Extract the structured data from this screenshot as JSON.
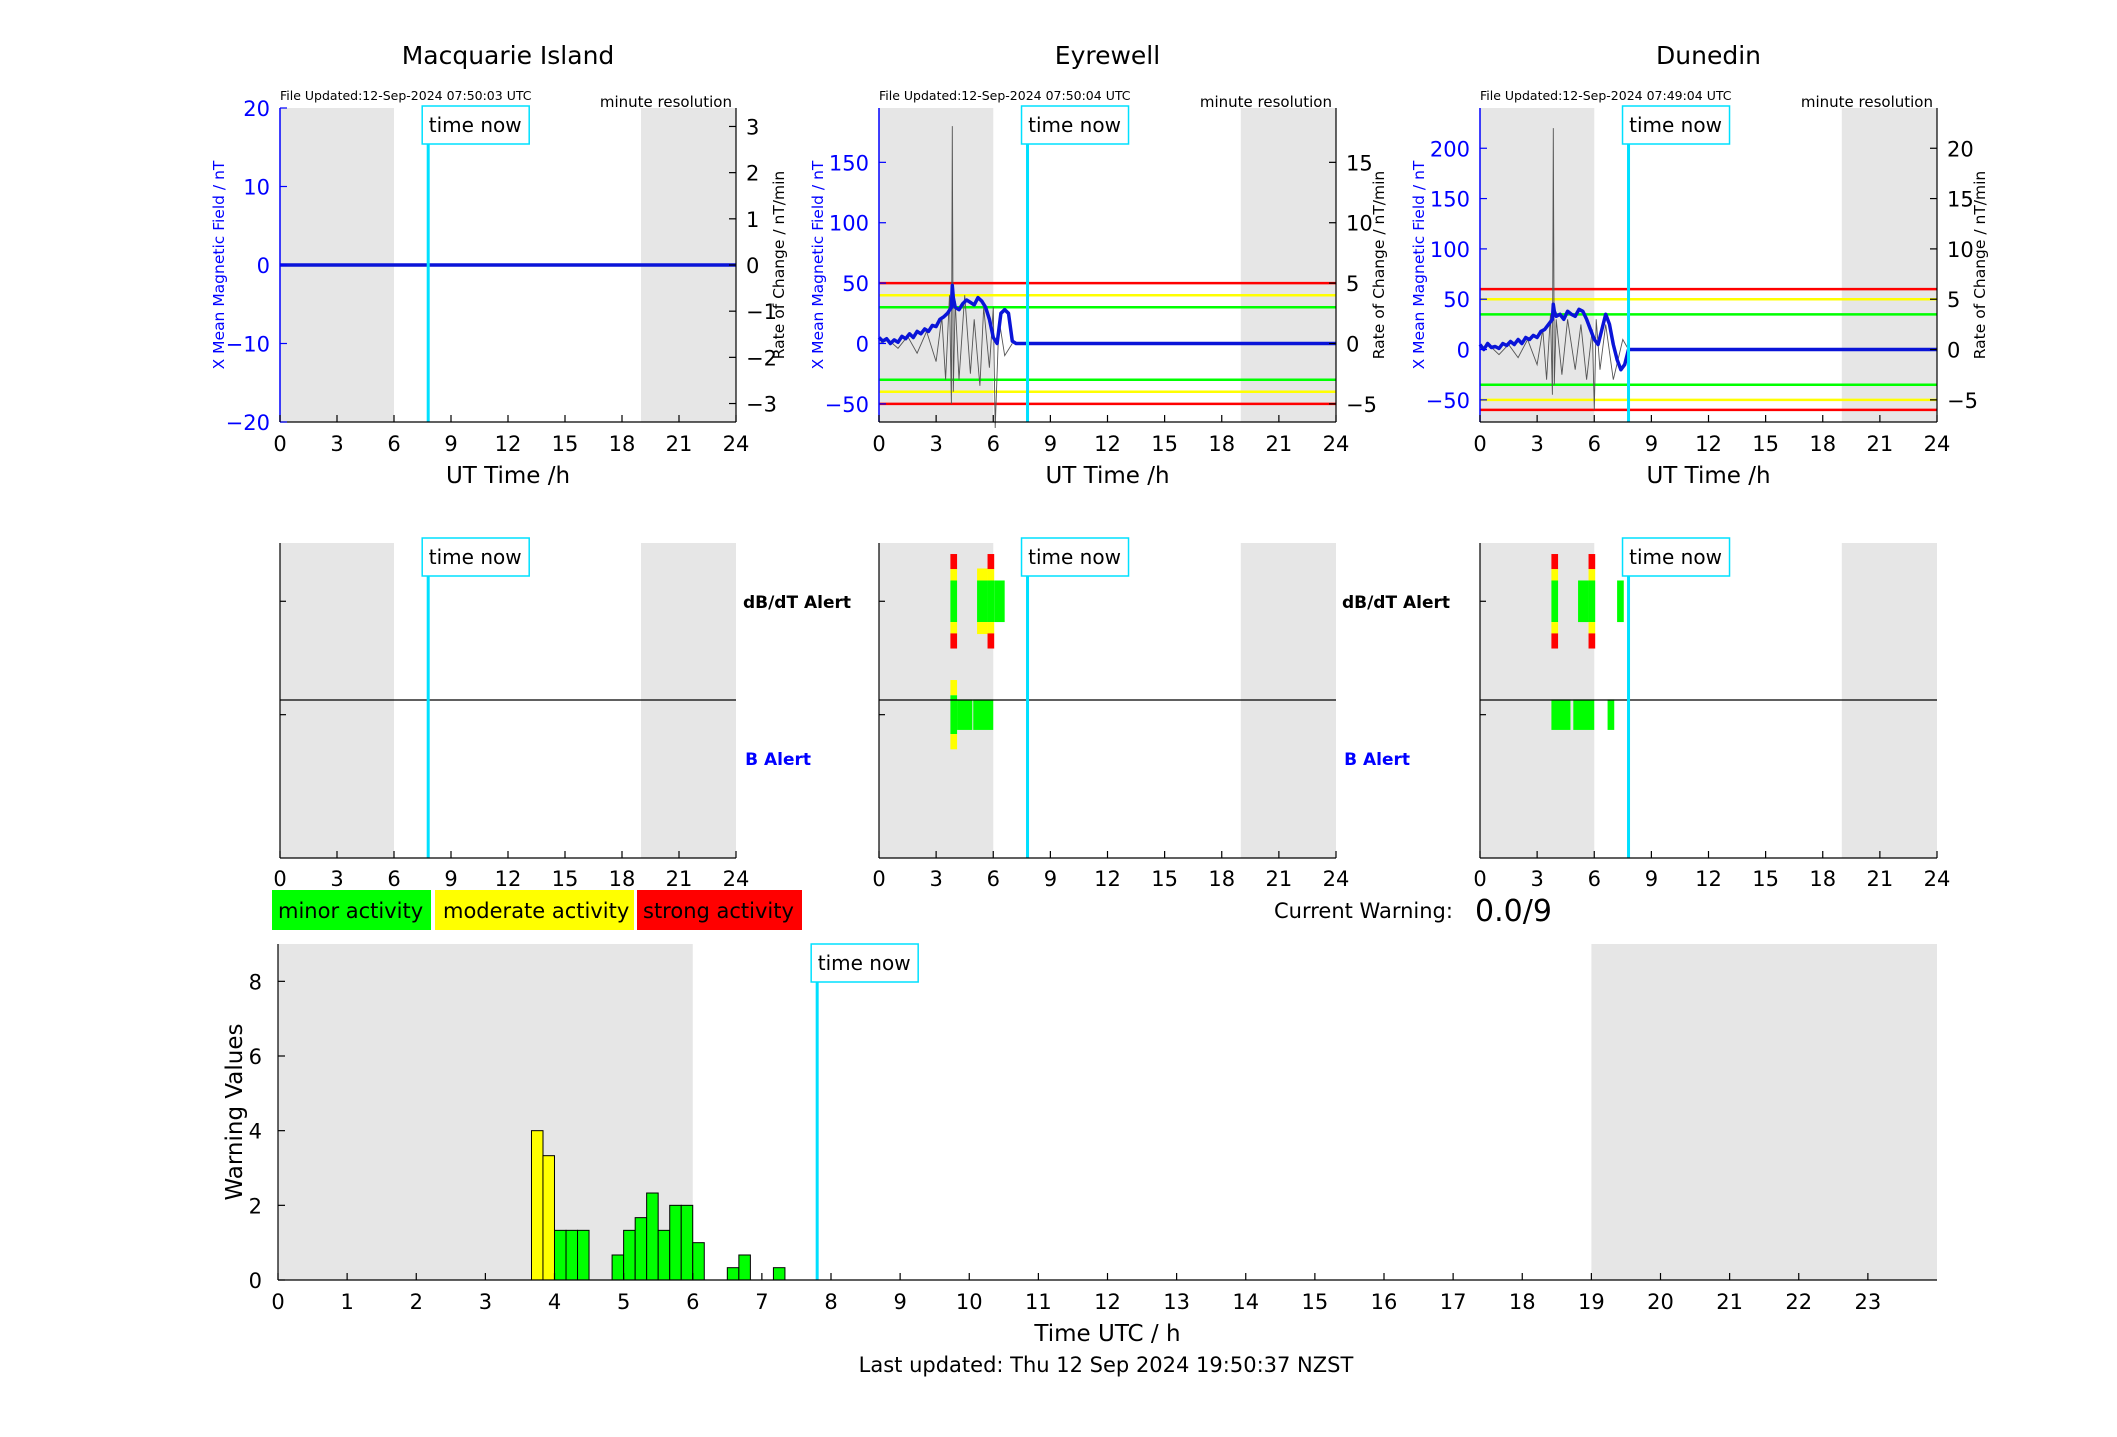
{
  "colors": {
    "blue": "#0000ff",
    "cyan": "#00e0ff",
    "green": "#00ff00",
    "yellow": "#ffff00",
    "red": "#ff0000",
    "night": "#e6e6e6",
    "trace": "#0a14d8",
    "rate": "#555555"
  },
  "top": {
    "xlabel": "UT Time /h",
    "left_ylabel": "X Mean Magnetic Field / nT",
    "right_ylabel": "Rate of Change / nT/min",
    "resolution": "minute resolution",
    "time_now_label": "time now"
  },
  "alerts": {
    "dbdt_label": "dB/dT Alert",
    "b_label": "B Alert"
  },
  "legend": [
    "minor activity",
    "moderate activity",
    "strong activity"
  ],
  "current_warning": {
    "label": "Current Warning:",
    "value": "0.0/9"
  },
  "footer": "Last updated: Thu 12 Sep 2024 19:50:37 NZST",
  "chart_data": [
    {
      "type": "line",
      "title": "Macquarie Island",
      "file_updated": "File Updated:12-Sep-2024 07:50:03 UTC",
      "xlim": [
        0,
        24
      ],
      "xticks": [
        0,
        3,
        6,
        9,
        12,
        15,
        18,
        21,
        24
      ],
      "ylim": [
        -20,
        20
      ],
      "yticks": [
        -20,
        -10,
        0,
        10,
        20
      ],
      "y2lim": [
        -3.4,
        3.4
      ],
      "y2ticks": [
        -3,
        -2,
        -1,
        0,
        1,
        2,
        3
      ],
      "night_spans": [
        [
          0,
          6
        ],
        [
          19,
          24
        ]
      ],
      "time_now": 7.8,
      "thresholds": [],
      "series": [
        {
          "x": [
            0,
            24
          ],
          "y": [
            0,
            0
          ]
        }
      ],
      "rate_series": [],
      "dbdt_alerts": [],
      "b_alerts": []
    },
    {
      "type": "line",
      "title": "Eyrewell",
      "file_updated": "File Updated:12-Sep-2024 07:50:04 UTC",
      "xlim": [
        0,
        24
      ],
      "xticks": [
        0,
        3,
        6,
        9,
        12,
        15,
        18,
        21,
        24
      ],
      "ylim": [
        -65,
        195
      ],
      "yticks": [
        -50,
        0,
        50,
        100,
        150
      ],
      "y2lim": [
        -6.5,
        19.5
      ],
      "y2ticks": [
        -5,
        0,
        5,
        10,
        15
      ],
      "night_spans": [
        [
          0,
          6
        ],
        [
          19,
          24
        ]
      ],
      "time_now": 7.8,
      "thresholds": [
        {
          "value": 50,
          "color": "red"
        },
        {
          "value": 40,
          "color": "yellow"
        },
        {
          "value": 30,
          "color": "green"
        },
        {
          "value": -30,
          "color": "green"
        },
        {
          "value": -40,
          "color": "yellow"
        },
        {
          "value": -50,
          "color": "red"
        }
      ],
      "series": [
        {
          "x": [
            0,
            0.2,
            0.4,
            0.6,
            0.8,
            1.0,
            1.2,
            1.4,
            1.6,
            1.8,
            2.0,
            2.2,
            2.4,
            2.6,
            2.8,
            3.0,
            3.2,
            3.4,
            3.6,
            3.8,
            3.85,
            3.9,
            4.0,
            4.2,
            4.4,
            4.6,
            4.8,
            5.0,
            5.2,
            5.4,
            5.6,
            5.8,
            6.0,
            6.2,
            6.4,
            6.6,
            6.8,
            7.0,
            7.2,
            24
          ],
          "y": [
            5,
            2,
            4,
            0,
            3,
            1,
            6,
            4,
            8,
            5,
            10,
            8,
            12,
            10,
            15,
            14,
            20,
            22,
            25,
            30,
            48,
            38,
            30,
            28,
            33,
            36,
            34,
            32,
            38,
            35,
            30,
            20,
            5,
            0,
            25,
            28,
            25,
            2,
            0,
            0
          ]
        }
      ],
      "rate_series": [
        {
          "x": [
            0,
            0.5,
            1.0,
            1.5,
            2.0,
            2.5,
            3.0,
            3.3,
            3.5,
            3.7,
            3.8,
            3.85,
            3.9,
            4.0,
            4.2,
            4.5,
            4.8,
            5.0,
            5.3,
            5.5,
            5.8,
            6.0,
            6.1,
            6.3,
            6.6,
            7.0
          ],
          "y": [
            0,
            0.3,
            -0.4,
            0.6,
            -0.8,
            1.0,
            -1.5,
            2.2,
            -3.0,
            4.0,
            -5.0,
            18,
            -4,
            3.5,
            -3,
            4,
            -2.5,
            2,
            -3.5,
            3,
            -2,
            3,
            -7,
            2,
            -1,
            0
          ]
        }
      ],
      "dbdt_alerts": [
        {
          "x": 3.75,
          "w": 0.35,
          "levels": [
            "red",
            "yellow",
            "green",
            "yellow",
            "red"
          ]
        },
        {
          "x": 5.15,
          "w": 0.55,
          "levels": [
            "green"
          ],
          "yellowCap": true
        },
        {
          "x": 5.7,
          "w": 0.35,
          "levels": [
            "red",
            "yellow",
            "green",
            "yellow",
            "red"
          ]
        },
        {
          "x": 6.05,
          "w": 0.55,
          "levels": [
            "green"
          ]
        }
      ],
      "b_alerts": [
        {
          "x": 3.75,
          "w": 0.35,
          "levels": [
            "yellow",
            "green",
            "yellow"
          ]
        },
        {
          "x": 4.1,
          "w": 0.8,
          "levels": [
            "green"
          ]
        },
        {
          "x": 4.95,
          "w": 1.05,
          "levels": [
            "green"
          ]
        }
      ]
    },
    {
      "type": "line",
      "title": "Dunedin",
      "file_updated": "File Updated:12-Sep-2024 07:49:04 UTC",
      "xlim": [
        0,
        24
      ],
      "xticks": [
        0,
        3,
        6,
        9,
        12,
        15,
        18,
        21,
        24
      ],
      "ylim": [
        -72,
        240
      ],
      "yticks": [
        -50,
        0,
        50,
        100,
        150,
        200
      ],
      "y2lim": [
        -7.2,
        24
      ],
      "y2ticks": [
        -5,
        0,
        5,
        10,
        15,
        20
      ],
      "night_spans": [
        [
          0,
          6
        ],
        [
          19,
          24
        ]
      ],
      "time_now": 7.8,
      "thresholds": [
        {
          "value": 60,
          "color": "red"
        },
        {
          "value": 50,
          "color": "yellow"
        },
        {
          "value": 35,
          "color": "green"
        },
        {
          "value": -35,
          "color": "green"
        },
        {
          "value": -50,
          "color": "yellow"
        },
        {
          "value": -60,
          "color": "red"
        }
      ],
      "series": [
        {
          "x": [
            0,
            0.2,
            0.4,
            0.6,
            0.8,
            1.0,
            1.2,
            1.4,
            1.6,
            1.8,
            2.0,
            2.2,
            2.4,
            2.6,
            2.8,
            3.0,
            3.2,
            3.4,
            3.6,
            3.8,
            3.85,
            3.9,
            4.0,
            4.2,
            4.4,
            4.6,
            4.8,
            5.0,
            5.2,
            5.4,
            5.6,
            5.8,
            6.0,
            6.2,
            6.4,
            6.6,
            6.8,
            7.0,
            7.2,
            7.4,
            7.6,
            7.8,
            24
          ],
          "y": [
            5,
            0,
            6,
            2,
            3,
            1,
            6,
            4,
            8,
            5,
            10,
            6,
            12,
            10,
            14,
            12,
            18,
            20,
            25,
            30,
            45,
            38,
            33,
            35,
            30,
            38,
            35,
            33,
            40,
            38,
            30,
            20,
            10,
            5,
            20,
            35,
            25,
            5,
            -10,
            -20,
            -15,
            0,
            0
          ]
        }
      ],
      "rate_series": [
        {
          "x": [
            0,
            0.5,
            1.0,
            1.5,
            2.0,
            2.5,
            3.0,
            3.3,
            3.5,
            3.7,
            3.8,
            3.85,
            3.9,
            4.0,
            4.3,
            4.6,
            5.0,
            5.3,
            5.6,
            5.9,
            6.0,
            6.1,
            6.3,
            6.6,
            7.0,
            7.5,
            7.8
          ],
          "y": [
            0,
            0.4,
            -0.5,
            0.5,
            -0.8,
            1.0,
            -1.5,
            2.0,
            -3.0,
            3.5,
            -4.5,
            22,
            -3.5,
            3,
            -2.5,
            3,
            -2,
            2.5,
            -3,
            2,
            -6,
            3,
            -2,
            2.5,
            -3,
            1,
            0
          ]
        }
      ],
      "dbdt_alerts": [
        {
          "x": 3.75,
          "w": 0.35,
          "levels": [
            "red",
            "yellow",
            "green",
            "yellow",
            "red"
          ]
        },
        {
          "x": 5.15,
          "w": 0.55,
          "levels": [
            "green"
          ]
        },
        {
          "x": 5.7,
          "w": 0.35,
          "levels": [
            "red",
            "yellow",
            "green",
            "yellow",
            "red"
          ]
        },
        {
          "x": 7.2,
          "w": 0.35,
          "levels": [
            "green"
          ]
        }
      ],
      "b_alerts": [
        {
          "x": 3.75,
          "w": 1.0,
          "levels": [
            "green"
          ]
        },
        {
          "x": 4.9,
          "w": 1.1,
          "levels": [
            "green"
          ]
        },
        {
          "x": 6.7,
          "w": 0.35,
          "levels": [
            "green"
          ]
        }
      ]
    },
    {
      "type": "bar",
      "xlabel": "Time UTC / h",
      "ylabel": "Warning Values",
      "xlim": [
        0,
        24
      ],
      "xticks": [
        0,
        1,
        2,
        3,
        4,
        5,
        6,
        7,
        8,
        9,
        10,
        11,
        12,
        13,
        14,
        15,
        16,
        17,
        18,
        19,
        20,
        21,
        22,
        23
      ],
      "ylim": [
        0,
        9
      ],
      "yticks": [
        0,
        2,
        4,
        6,
        8
      ],
      "night_spans": [
        [
          0,
          6
        ],
        [
          19,
          24
        ]
      ],
      "time_now": 7.8,
      "bin_width": 0.1667,
      "bars": [
        {
          "x": 3.667,
          "value": 4.0,
          "color": "yellow"
        },
        {
          "x": 3.833,
          "value": 3.33,
          "color": "yellow"
        },
        {
          "x": 4.0,
          "value": 1.33,
          "color": "green"
        },
        {
          "x": 4.167,
          "value": 1.33,
          "color": "green"
        },
        {
          "x": 4.333,
          "value": 1.33,
          "color": "green"
        },
        {
          "x": 4.833,
          "value": 0.67,
          "color": "green"
        },
        {
          "x": 5.0,
          "value": 1.33,
          "color": "green"
        },
        {
          "x": 5.167,
          "value": 1.67,
          "color": "green"
        },
        {
          "x": 5.333,
          "value": 2.33,
          "color": "green"
        },
        {
          "x": 5.5,
          "value": 1.33,
          "color": "green"
        },
        {
          "x": 5.667,
          "value": 2.0,
          "color": "green"
        },
        {
          "x": 5.833,
          "value": 2.0,
          "color": "green"
        },
        {
          "x": 6.0,
          "value": 1.0,
          "color": "green"
        },
        {
          "x": 6.5,
          "value": 0.33,
          "color": "green"
        },
        {
          "x": 6.667,
          "value": 0.67,
          "color": "green"
        },
        {
          "x": 7.167,
          "value": 0.33,
          "color": "green"
        }
      ]
    }
  ]
}
